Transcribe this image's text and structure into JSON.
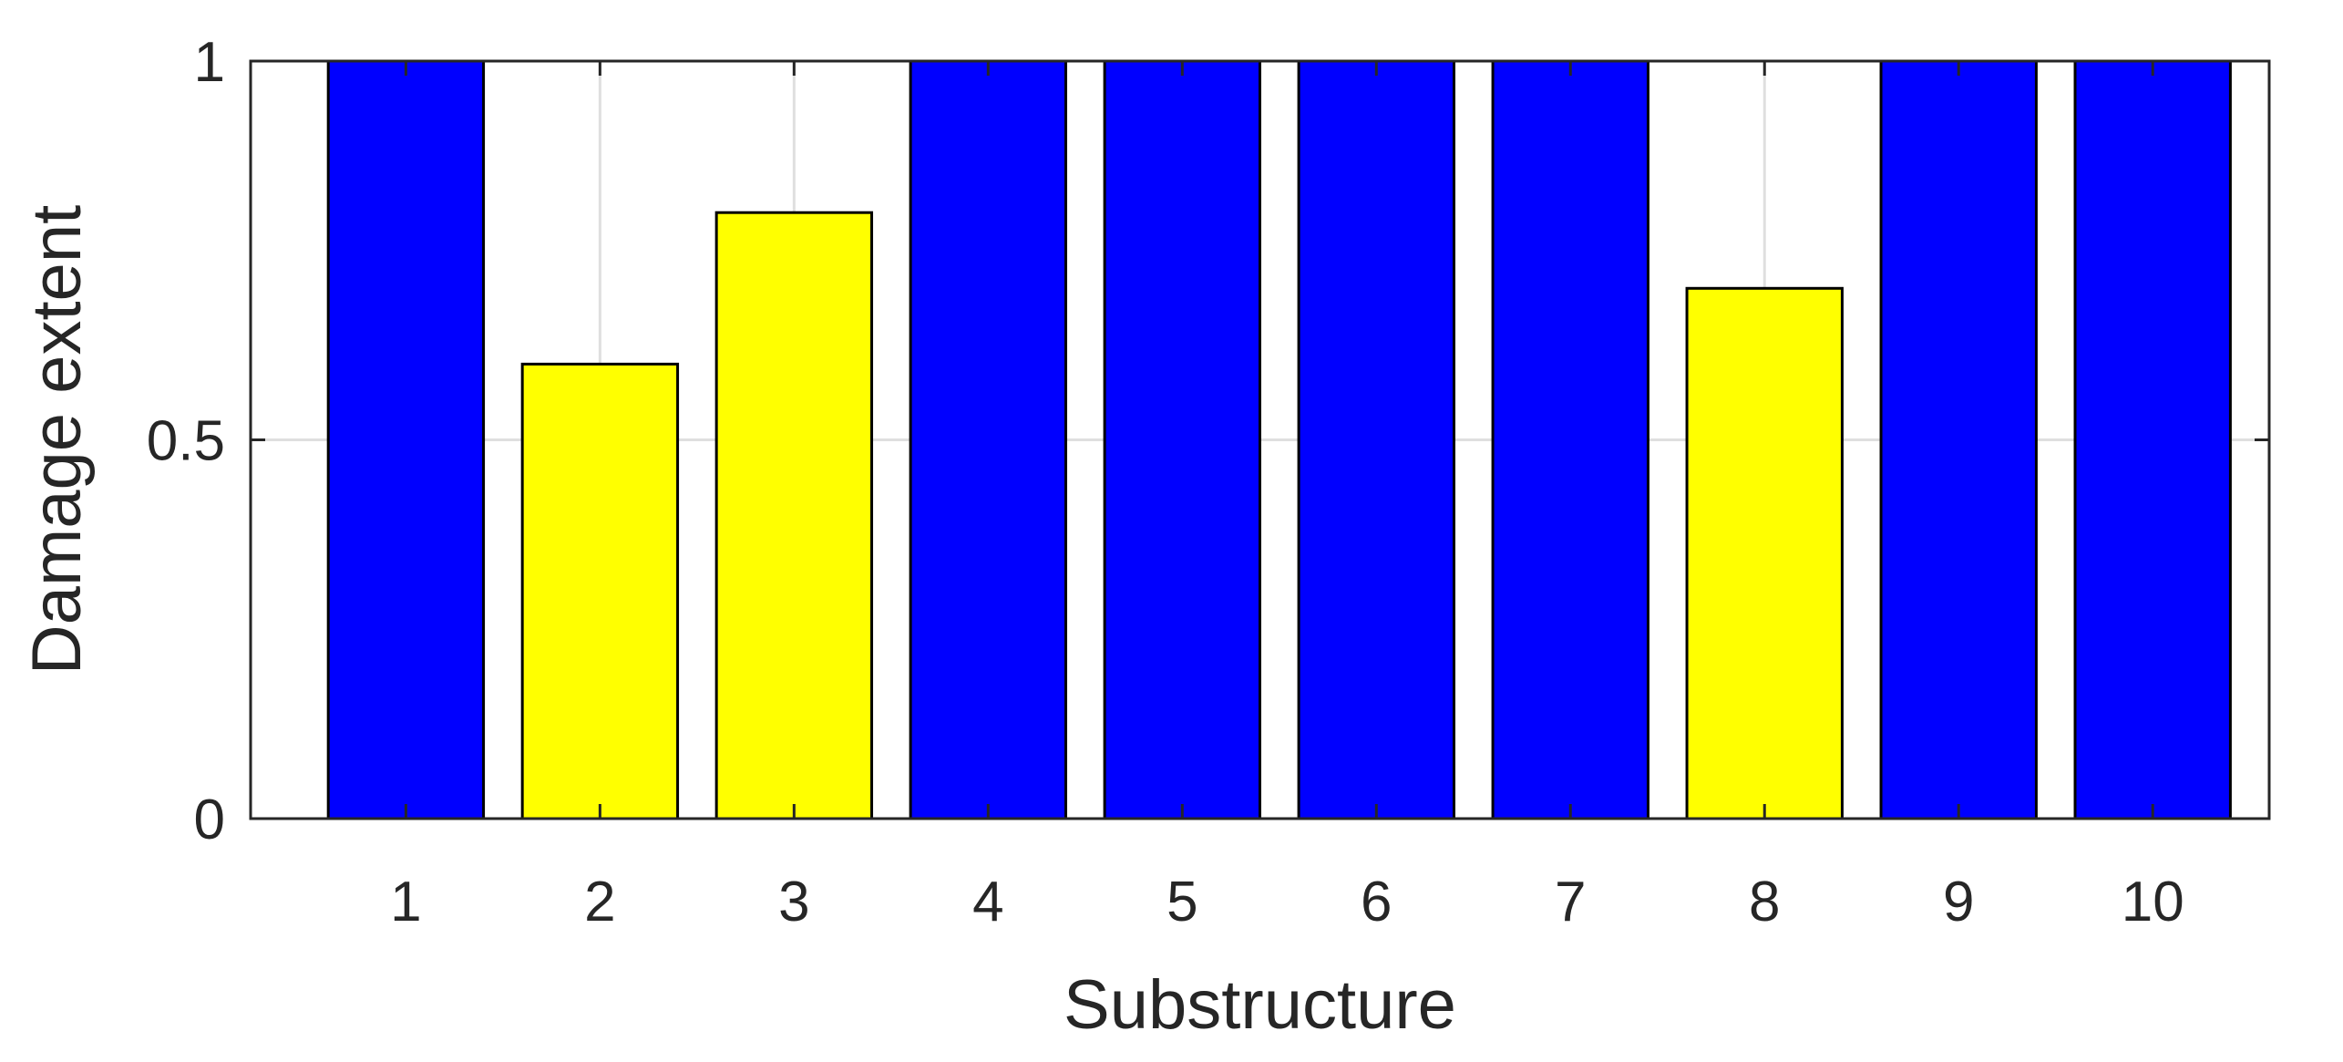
{
  "chart_data": {
    "type": "bar",
    "title": "",
    "xlabel": "Substructure",
    "ylabel": "Damage extent",
    "categories": [
      "1",
      "2",
      "3",
      "4",
      "5",
      "6",
      "7",
      "8",
      "9",
      "10"
    ],
    "values": [
      1,
      0.6,
      0.8,
      1,
      1,
      1,
      1,
      0.7,
      1,
      1
    ],
    "bar_colors": [
      "#0000ff",
      "#ffff00",
      "#ffff00",
      "#0000ff",
      "#0000ff",
      "#0000ff",
      "#0000ff",
      "#ffff00",
      "#0000ff",
      "#0000ff"
    ],
    "ylim": [
      0,
      1
    ],
    "yticks": [
      0,
      0.5,
      1
    ],
    "ytick_labels": [
      "0",
      "0.5",
      "1"
    ],
    "xlim": [
      0.2,
      10.6
    ],
    "grid": true,
    "grid_x_at": [
      2,
      3,
      8
    ],
    "legend": null
  }
}
